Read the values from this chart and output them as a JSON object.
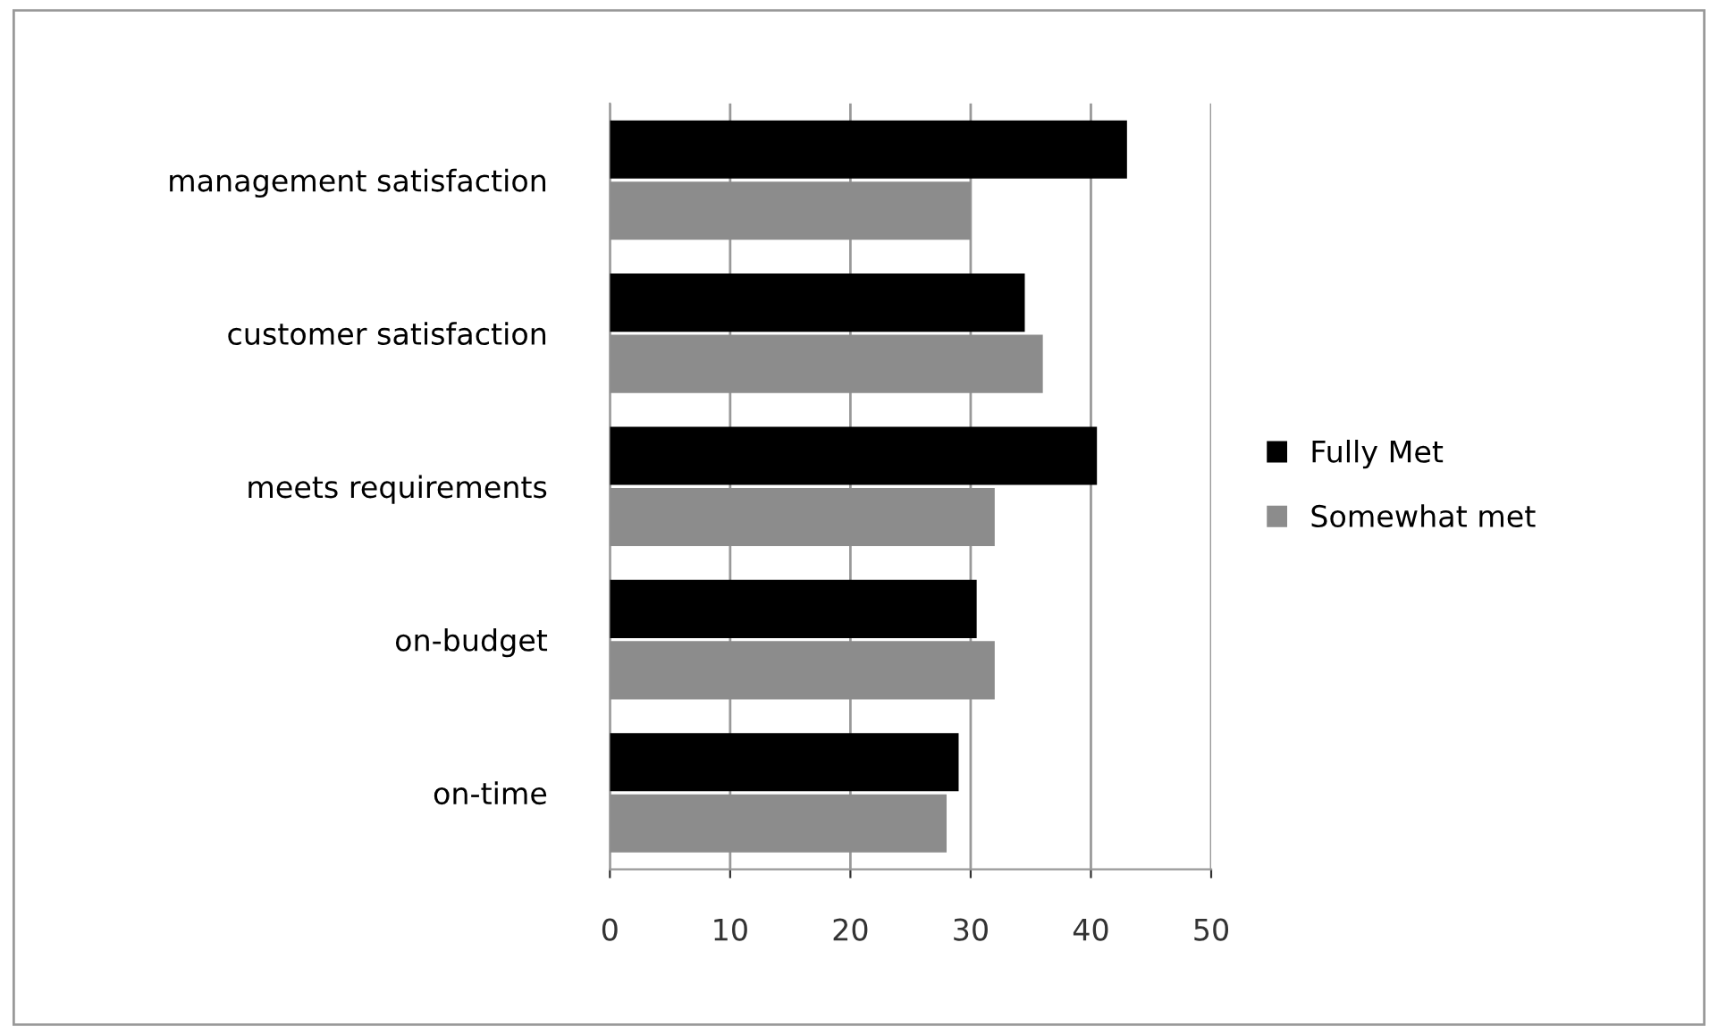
{
  "chart_data": {
    "type": "bar",
    "orientation": "horizontal",
    "categories": [
      "management satisfaction",
      "customer satisfaction",
      "meets requirements",
      "on-budget",
      "on-time"
    ],
    "series": [
      {
        "name": "Fully Met",
        "color": "#000000",
        "values": [
          43,
          34.5,
          40.5,
          30.5,
          29
        ]
      },
      {
        "name": "Somewhat met",
        "color": "#8c8c8c",
        "values": [
          30,
          36,
          32,
          32,
          28
        ]
      }
    ],
    "xlim": [
      0,
      50
    ],
    "xticks": [
      0,
      10,
      20,
      30,
      40,
      50
    ],
    "grid": "x",
    "legend": "right"
  }
}
